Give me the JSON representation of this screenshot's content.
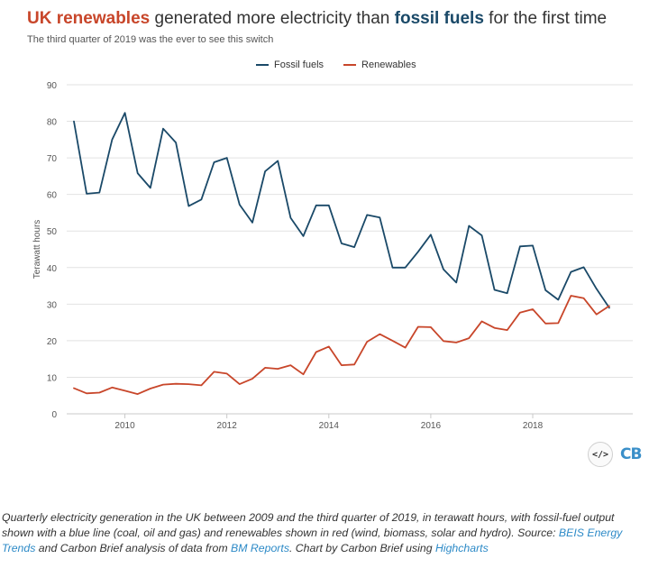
{
  "header": {
    "title_part1": "UK renewables",
    "title_part2": " generated more electricity than ",
    "title_part3": "fossil fuels",
    "title_part4": " for the first time",
    "subtitle": "The third quarter of 2019 was the ever to see this switch"
  },
  "colors": {
    "fossil": "#1a4968",
    "renewables": "#c8462a",
    "grid": "#e2e2e2",
    "axis_text": "#555555"
  },
  "footer": {
    "embed_label": "</>",
    "logo_text": "CB"
  },
  "caption": {
    "part1": "Quarterly electricity generation in the UK between 2009 and the third quarter of 2019, in terawatt hours, with fossil-fuel output shown with a blue line (coal, oil and gas) and renewables shown in red (wind, biomass, solar and hydro). Source: ",
    "link1": "BEIS Energy Trends",
    "part2": " and Carbon Brief analysis of data from ",
    "link2": "BM Reports",
    "part3": ". Chart by Carbon Brief using ",
    "link3": "Highcharts"
  },
  "chart_data": {
    "type": "line",
    "title": "UK renewables generated more electricity than fossil fuels for the first time",
    "subtitle": "The third quarter of 2019 was the ever to see this switch",
    "xlabel": "",
    "ylabel": "Terawatt hours",
    "ylim": [
      0,
      90
    ],
    "xlim": [
      2009,
      2019.75
    ],
    "yticks": [
      0,
      10,
      20,
      30,
      40,
      50,
      60,
      70,
      80,
      90
    ],
    "xticks": [
      2010,
      2012,
      2014,
      2016,
      2018
    ],
    "legend_position": "top-center",
    "x": [
      2009.0,
      2009.25,
      2009.5,
      2009.75,
      2010.0,
      2010.25,
      2010.5,
      2010.75,
      2011.0,
      2011.25,
      2011.5,
      2011.75,
      2012.0,
      2012.25,
      2012.5,
      2012.75,
      2013.0,
      2013.25,
      2013.5,
      2013.75,
      2014.0,
      2014.25,
      2014.5,
      2014.75,
      2015.0,
      2015.25,
      2015.5,
      2015.75,
      2016.0,
      2016.25,
      2016.5,
      2016.75,
      2017.0,
      2017.25,
      2017.5,
      2017.75,
      2018.0,
      2018.25,
      2018.5,
      2018.75,
      2019.0,
      2019.25,
      2019.5
    ],
    "series": [
      {
        "name": "Fossil fuels",
        "color": "#1a4968",
        "values": [
          80,
          60.2,
          60.5,
          75,
          82.3,
          65.8,
          61.8,
          78,
          74.2,
          56.8,
          58.6,
          68.8,
          70,
          57.2,
          52.3,
          66.3,
          69.2,
          53.6,
          48.6,
          57,
          57,
          46.6,
          45.6,
          54.4,
          53.7,
          40,
          40,
          44.3,
          49,
          39.5,
          35.9,
          51.4,
          48.8,
          33.9,
          33,
          45.8,
          46,
          33.8,
          31.2,
          38.8,
          40.1,
          34.2,
          29
        ]
      },
      {
        "name": "Renewables",
        "color": "#c8462a",
        "values": [
          7,
          5.6,
          5.8,
          7.2,
          6.3,
          5.4,
          6.9,
          8,
          8.2,
          8.1,
          7.8,
          11.5,
          11,
          8.1,
          9.6,
          12.6,
          12.3,
          13.3,
          10.8,
          16.9,
          18.4,
          13.3,
          13.5,
          19.7,
          21.8,
          20,
          18.1,
          23.8,
          23.7,
          19.9,
          19.5,
          20.7,
          25.3,
          23.5,
          22.9,
          27.7,
          28.6,
          24.7,
          24.8,
          32.3,
          31.6,
          27.2,
          29.5
        ]
      }
    ]
  }
}
